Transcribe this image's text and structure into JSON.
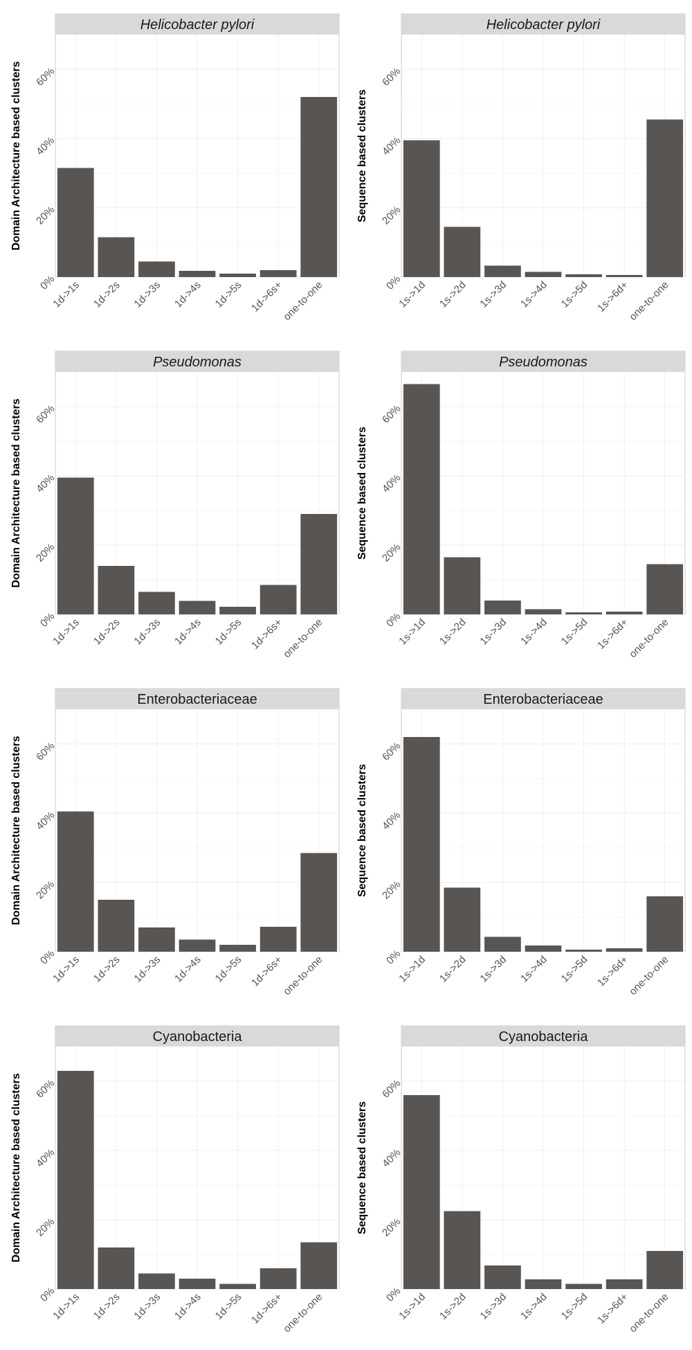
{
  "colors": {
    "bar": "#595552",
    "strip": "#d9d9d9",
    "panel_border": "#cccccc",
    "grid": "#ececec"
  },
  "chart_data": [
    {
      "type": "bar",
      "title": "Helicobacter pylori",
      "title_italic": true,
      "ylabel": "Domain Architecture based clusters",
      "categories": [
        "1d->1s",
        "1d->2s",
        "1d->3s",
        "1d->4s",
        "1d->5s",
        "1d->6s+",
        "one-to-one"
      ],
      "values": [
        31.5,
        11.5,
        4.5,
        1.8,
        1.0,
        2.0,
        52.0
      ],
      "yticks": [
        "0%",
        "20%",
        "40%",
        "60%"
      ],
      "ylim": [
        0,
        70
      ],
      "grid": true
    },
    {
      "type": "bar",
      "title": "Helicobacter pylori",
      "title_italic": true,
      "ylabel": "Sequence based clusters",
      "categories": [
        "1s->1d",
        "1s->2d",
        "1s->3d",
        "1s->4d",
        "1s->5d",
        "1s->6d+",
        "one-to-one"
      ],
      "values": [
        39.5,
        14.5,
        3.3,
        1.5,
        0.8,
        0.6,
        45.5
      ],
      "yticks": [
        "0%",
        "20%",
        "40%",
        "60%"
      ],
      "ylim": [
        0,
        70
      ],
      "grid": true
    },
    {
      "type": "bar",
      "title": "Pseudomonas",
      "title_italic": true,
      "ylabel": "Domain Architecture based clusters",
      "categories": [
        "1d->1s",
        "1d->2s",
        "1d->3s",
        "1d->4s",
        "1d->5s",
        "1d->6s+",
        "one-to-one"
      ],
      "values": [
        39.5,
        14.0,
        6.5,
        3.9,
        2.2,
        8.5,
        29.0
      ],
      "yticks": [
        "0%",
        "20%",
        "40%",
        "60%"
      ],
      "ylim": [
        0,
        70
      ],
      "grid": true
    },
    {
      "type": "bar",
      "title": "Pseudomonas",
      "title_italic": true,
      "ylabel": "Sequence based clusters",
      "categories": [
        "1s->1d",
        "1s->2d",
        "1s->3d",
        "1s->4d",
        "1s->5d",
        "1s->6d+",
        "one-to-one"
      ],
      "values": [
        66.5,
        16.5,
        4.0,
        1.5,
        0.6,
        0.8,
        14.5
      ],
      "yticks": [
        "0%",
        "20%",
        "40%",
        "60%"
      ],
      "ylim": [
        0,
        70
      ],
      "grid": true
    },
    {
      "type": "bar",
      "title": "Enterobacteriaceae",
      "title_italic": false,
      "ylabel": "Domain Architecture based clusters",
      "categories": [
        "1d->1s",
        "1d->2s",
        "1d->3s",
        "1d->4s",
        "1d->5s",
        "1d->6s+",
        "one-to-one"
      ],
      "values": [
        40.5,
        15.0,
        7.0,
        3.5,
        2.0,
        7.2,
        28.5
      ],
      "yticks": [
        "0%",
        "20%",
        "40%",
        "60%"
      ],
      "ylim": [
        0,
        70
      ],
      "grid": true
    },
    {
      "type": "bar",
      "title": "Enterobacteriaceae",
      "title_italic": false,
      "ylabel": "Sequence based clusters",
      "categories": [
        "1s->1d",
        "1s->2d",
        "1s->3d",
        "1s->4d",
        "1s->5d",
        "1s->6d+",
        "one-to-one"
      ],
      "values": [
        62.0,
        18.5,
        4.3,
        1.8,
        0.6,
        1.0,
        16.0
      ],
      "yticks": [
        "0%",
        "20%",
        "40%",
        "60%"
      ],
      "ylim": [
        0,
        70
      ],
      "grid": true
    },
    {
      "type": "bar",
      "title": "Cyanobacteria",
      "title_italic": false,
      "ylabel": "Domain Architecture based clusters",
      "categories": [
        "1d->1s",
        "1d->2s",
        "1d->3s",
        "1d->4s",
        "1d->5s",
        "1d->6s+",
        "one-to-one"
      ],
      "values": [
        63.0,
        12.0,
        4.5,
        3.0,
        1.5,
        6.0,
        13.5
      ],
      "yticks": [
        "0%",
        "20%",
        "40%",
        "60%"
      ],
      "ylim": [
        0,
        70
      ],
      "grid": true
    },
    {
      "type": "bar",
      "title": "Cyanobacteria",
      "title_italic": false,
      "ylabel": "Sequence based clusters",
      "categories": [
        "1s->1d",
        "1s->2d",
        "1s->3d",
        "1s->4d",
        "1s->5d",
        "1s->6d+",
        "one-to-one"
      ],
      "values": [
        56.0,
        22.5,
        6.8,
        2.8,
        1.5,
        2.8,
        11.0
      ],
      "yticks": [
        "0%",
        "20%",
        "40%",
        "60%"
      ],
      "ylim": [
        0,
        70
      ],
      "grid": true
    }
  ]
}
